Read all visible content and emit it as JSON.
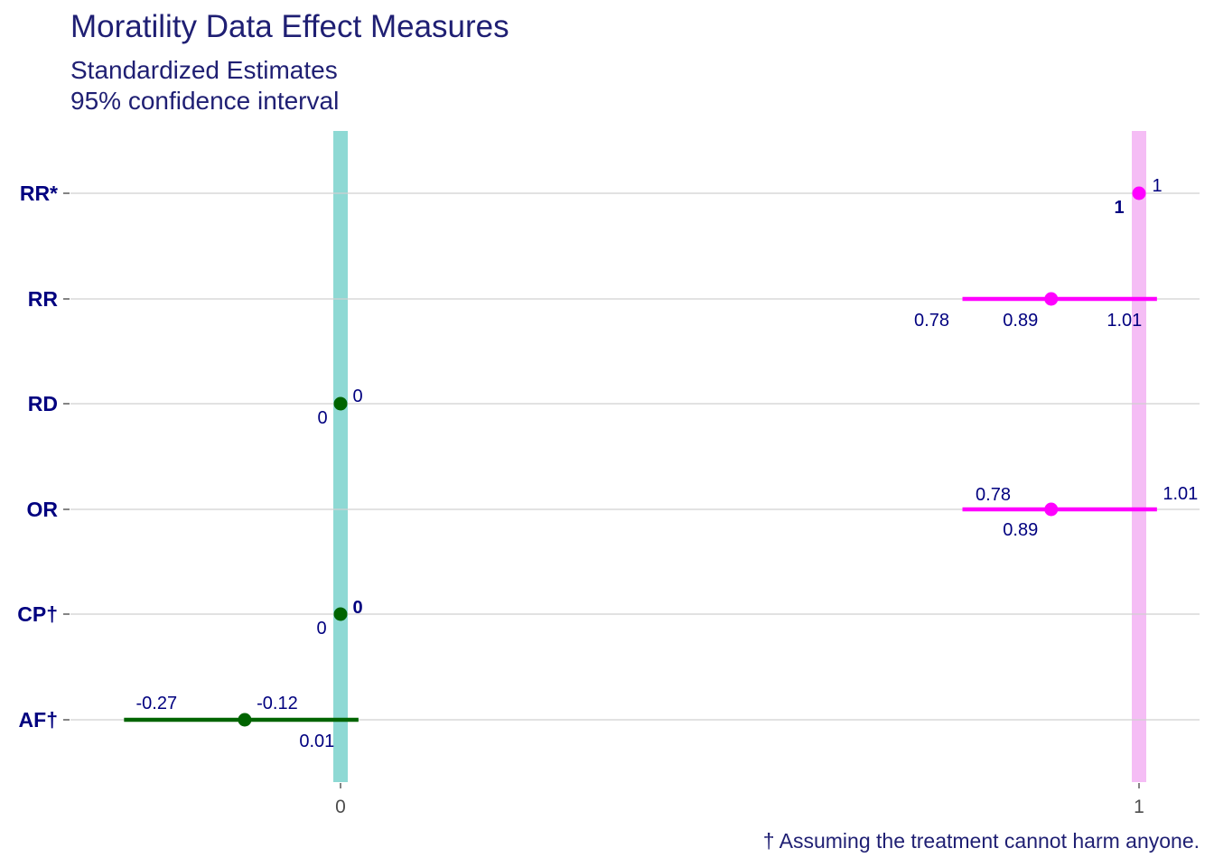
{
  "title": "Moratility Data Effect Measures",
  "subtitle_line1": "Standardized Estimates",
  "subtitle_line2": "95% confidence interval",
  "caption": "† Assuming the treatment cannot harm anyone.",
  "colors": {
    "title": "#1f1f73",
    "label_text": "#00007f",
    "magenta": "#ff00ff",
    "green": "#006400",
    "ref_band_zero": "#8ed9d4",
    "ref_band_one": "#f5bdf5",
    "grid": "#d0d0d0"
  },
  "chart_data": {
    "type": "scatter",
    "subtype": "forest-plot",
    "x_ticks": [
      "0",
      "1"
    ],
    "xlim": [
      -0.34,
      1.08
    ],
    "reference_lines": [
      0,
      1
    ],
    "grid": true,
    "categories": [
      "RR*",
      "RR",
      "RD",
      "OR",
      "CP†",
      "AF†"
    ],
    "rows": [
      {
        "label": "RR*",
        "estimate": 1,
        "lower": 1,
        "upper": 1,
        "color": "magenta",
        "labels": {
          "estimate": "1",
          "lower": "1",
          "upper": "1"
        }
      },
      {
        "label": "RR",
        "estimate": 0.89,
        "lower": 0.78,
        "upper": 1.01,
        "color": "magenta",
        "labels": {
          "estimate": "0.89",
          "lower": "0.78",
          "upper": "1.01"
        }
      },
      {
        "label": "RD",
        "estimate": 0,
        "lower": 0,
        "upper": 0,
        "color": "green",
        "labels": {
          "estimate": "0",
          "lower": "0",
          "upper": "0"
        }
      },
      {
        "label": "OR",
        "estimate": 0.89,
        "lower": 0.78,
        "upper": 1.01,
        "color": "magenta",
        "labels": {
          "estimate": "0.89",
          "lower": "0.78",
          "upper": "1.01"
        }
      },
      {
        "label": "CP†",
        "estimate": 0,
        "lower": 0,
        "upper": 0,
        "color": "green",
        "labels": {
          "estimate": "0",
          "lower": "0",
          "upper": "0"
        }
      },
      {
        "label": "AF†",
        "estimate": -0.12,
        "lower": -0.27,
        "upper": 0.01,
        "color": "green",
        "labels": {
          "estimate": "-0.12",
          "lower": "-0.27",
          "upper": "0.01"
        }
      }
    ]
  }
}
